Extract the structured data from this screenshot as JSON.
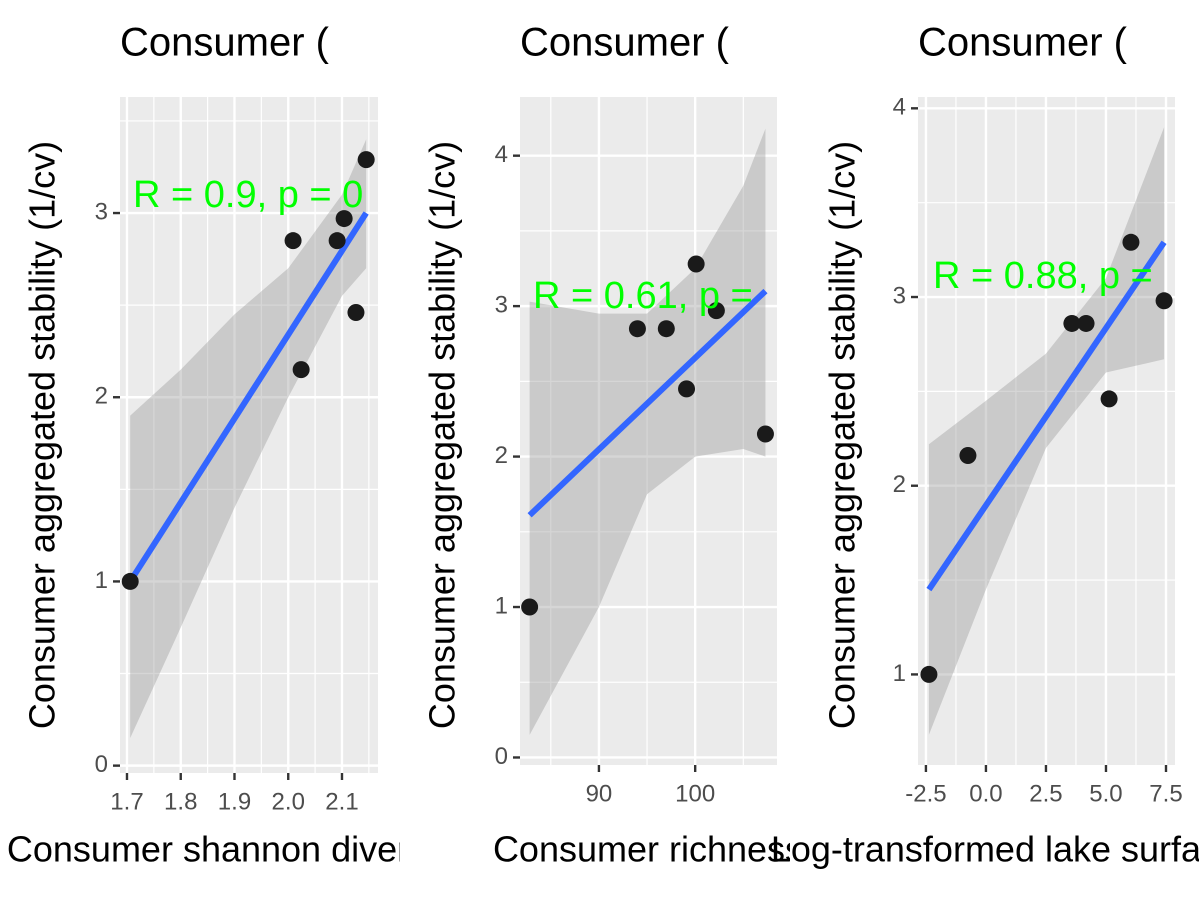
{
  "chart_data": [
    {
      "type": "scatter",
      "title": "Consumer (",
      "x_label": "Consumer shannon diversity",
      "y_label": "Consumer aggregated stability (1/cv)",
      "annotation": "R = 0.9, p = 0",
      "annotation_color": "#00ff00",
      "xlim": [
        1.687,
        2.167
      ],
      "ylim": [
        -0.04,
        3.63
      ],
      "xticks": [
        1.7,
        1.8,
        1.9,
        {
          "value": 2,
          "label": "2.0"
        },
        2.1
      ],
      "yticks": [
        0,
        1,
        2,
        3
      ],
      "points": {
        "color": "#1a1a1a",
        "x": [
          1.706,
          2.009,
          2.024,
          2.091,
          2.104,
          2.126,
          2.145
        ],
        "y": [
          1.0,
          2.85,
          2.15,
          2.85,
          2.97,
          2.46,
          3.29
        ]
      },
      "fit_line": {
        "color": "#3366ff",
        "x": [
          1.706,
          2.145
        ],
        "y": [
          1.0,
          3.0
        ]
      },
      "ribbon": {
        "color": "#999999",
        "x": [
          1.706,
          1.8,
          1.9,
          2.0,
          2.1,
          2.145
        ],
        "lower": [
          0.15,
          0.75,
          1.4,
          2.0,
          2.55,
          2.7
        ],
        "upper": [
          1.9,
          2.15,
          2.45,
          2.7,
          3.1,
          3.4
        ]
      },
      "grid": true,
      "background": "#ebebeb"
    },
    {
      "type": "scatter",
      "title": "Consumer (",
      "x_label": "Consumer richness",
      "y_label": "Consumer aggregated stability (1/cv)",
      "annotation": "R = 0.61, p =",
      "annotation_color": "#00ff00",
      "xlim": [
        81.8,
        108.5
      ],
      "ylim": [
        -0.05,
        4.39
      ],
      "xticks": [
        90,
        100
      ],
      "yticks": [
        0,
        1,
        2,
        3,
        4
      ],
      "points": {
        "color": "#1a1a1a",
        "x": [
          82.8,
          94.0,
          97.0,
          99.1,
          100.1,
          102.2,
          107.3
        ],
        "y": [
          1.0,
          2.85,
          2.85,
          2.45,
          3.28,
          2.97,
          2.15
        ]
      },
      "fit_line": {
        "color": "#3366ff",
        "x": [
          82.8,
          107.3
        ],
        "y": [
          1.61,
          3.1
        ]
      },
      "ribbon": {
        "color": "#999999",
        "x": [
          82.8,
          90,
          95,
          100,
          105,
          107.3
        ],
        "lower": [
          0.15,
          1.0,
          1.75,
          2.0,
          2.05,
          2.0
        ],
        "upper": [
          3.03,
          2.95,
          2.95,
          3.25,
          3.8,
          4.18
        ]
      },
      "grid": true,
      "background": "#ebebeb"
    },
    {
      "type": "scatter",
      "title": "Consumer (",
      "x_label": "Log-transformed lake surface area",
      "y_label": "Consumer aggregated stability (1/cv)",
      "annotation": "R = 0.88, p =",
      "annotation_color": "#00ff00",
      "xlim": [
        -2.83,
        7.875
      ],
      "ylim": [
        0.52,
        4.06
      ],
      "xticks": [
        -2.5,
        {
          "value": 0,
          "label": "0.0"
        },
        2.5,
        {
          "value": 5,
          "label": "5.0"
        },
        7.5
      ],
      "yticks": [
        1,
        2,
        3,
        4
      ],
      "points": {
        "color": "#1a1a1a",
        "x": [
          -2.375,
          -0.75,
          3.58,
          4.17,
          5.13,
          6.04,
          7.42
        ],
        "y": [
          1.0,
          2.16,
          2.86,
          2.86,
          2.46,
          3.29,
          2.98
        ]
      },
      "fit_line": {
        "color": "#3366ff",
        "x": [
          -2.375,
          7.42
        ],
        "y": [
          1.45,
          3.29
        ]
      },
      "ribbon": {
        "color": "#999999",
        "x": [
          -2.375,
          0,
          2.5,
          5,
          7.42
        ],
        "lower": [
          0.68,
          1.45,
          2.2,
          2.6,
          2.67
        ],
        "upper": [
          2.22,
          2.45,
          2.7,
          3.1,
          3.9
        ]
      },
      "grid": true,
      "background": "#ebebeb"
    }
  ]
}
